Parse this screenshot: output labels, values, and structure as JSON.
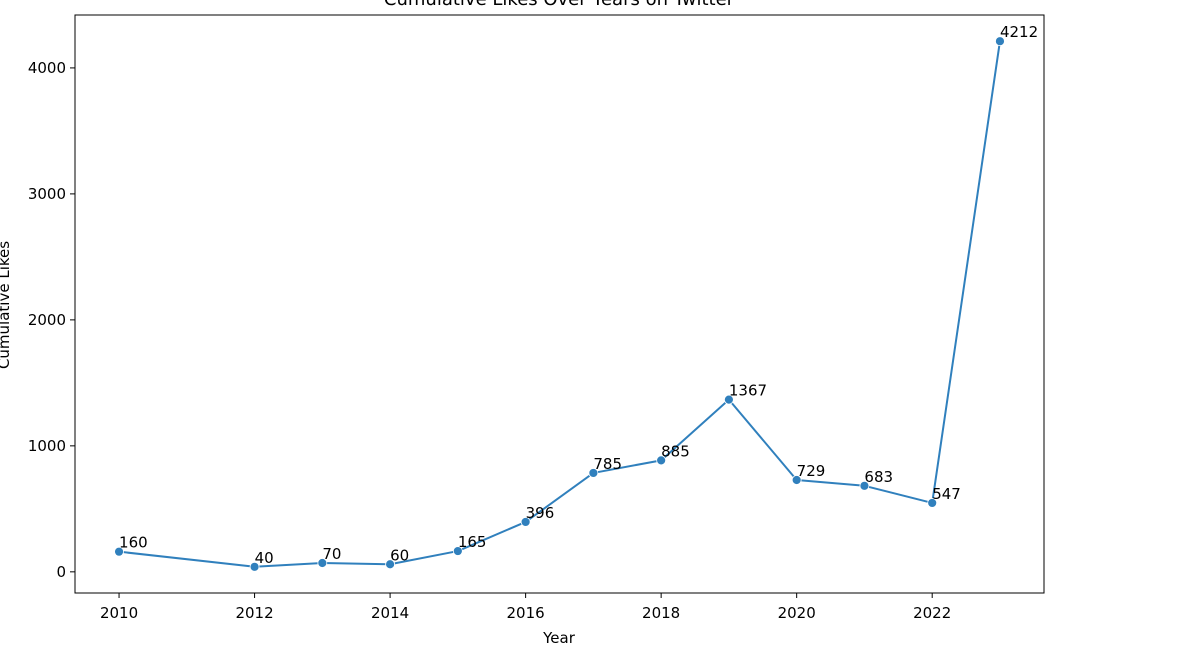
{
  "chart_data": {
    "type": "line",
    "title": "Cumulative Likes Over Years on Twitter",
    "xlabel": "Year",
    "ylabel": "Cumulative Likes",
    "x": [
      2010,
      2012,
      2013,
      2014,
      2015,
      2016,
      2017,
      2018,
      2019,
      2020,
      2021,
      2022,
      2023
    ],
    "series": [
      {
        "values": [
          160,
          40,
          70,
          60,
          165,
          396,
          785,
          885,
          1367,
          729,
          683,
          547,
          4212
        ],
        "color": "#3080bd"
      }
    ],
    "data_labels": [
      "160",
      "40",
      "70",
      "60",
      "165",
      "396",
      "785",
      "885",
      "1367",
      "729",
      "683",
      "547",
      "4212"
    ],
    "xlim": [
      2009.35,
      2023.65
    ],
    "ylim": [
      -168,
      4420
    ],
    "x_ticks": [
      2010,
      2012,
      2014,
      2016,
      2018,
      2020,
      2022
    ],
    "x_tick_labels": [
      "2010",
      "2012",
      "2014",
      "2016",
      "2018",
      "2020",
      "2022"
    ],
    "y_ticks": [
      0,
      1000,
      2000,
      3000,
      4000
    ],
    "y_tick_labels": [
      "0",
      "1000",
      "2000",
      "3000",
      "4000"
    ],
    "grid": false,
    "markers": true
  }
}
